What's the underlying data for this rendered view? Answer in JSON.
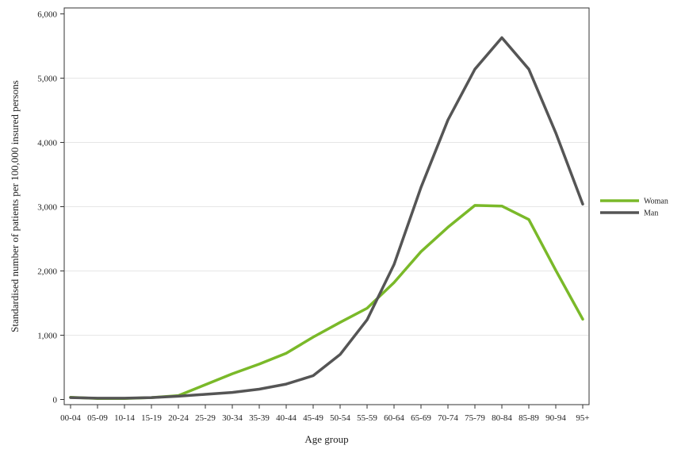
{
  "chart_data": {
    "type": "line",
    "title": "",
    "xlabel": "Age group",
    "ylabel": "Standardised number of patients per 100,000 insured persons",
    "categories": [
      "00-04",
      "05-09",
      "10-14",
      "15-19",
      "20-24",
      "25-29",
      "30-34",
      "35-39",
      "40-44",
      "45-49",
      "50-54",
      "55-59",
      "60-64",
      "65-69",
      "70-74",
      "75-79",
      "80-84",
      "85-89",
      "90-94",
      "95+"
    ],
    "ylim": [
      0,
      6000
    ],
    "yticks": [
      0,
      1000,
      2000,
      3000,
      4000,
      5000,
      6000
    ],
    "ytick_labels": [
      "0",
      "1,000",
      "2,000",
      "3,000",
      "4,000",
      "5,000",
      "6,000"
    ],
    "grid": "horizontal",
    "legend_position": "right",
    "series": [
      {
        "name": "Woman",
        "color": "#7ab929",
        "values": [
          35,
          15,
          15,
          30,
          60,
          230,
          400,
          550,
          720,
          970,
          1200,
          1420,
          1820,
          2300,
          2680,
          3020,
          3010,
          2800,
          2010,
          1250
        ]
      },
      {
        "name": "Man",
        "color": "#555555",
        "values": [
          30,
          20,
          20,
          30,
          50,
          80,
          110,
          160,
          240,
          370,
          700,
          1240,
          2100,
          3300,
          4350,
          5140,
          5630,
          5140,
          4150,
          3040
        ]
      }
    ]
  }
}
